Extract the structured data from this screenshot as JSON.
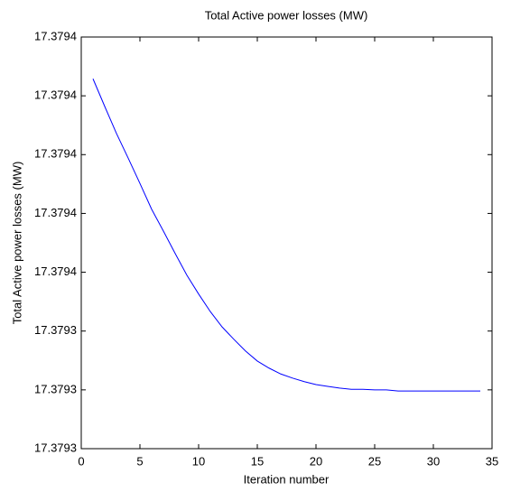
{
  "chart_data": {
    "type": "line",
    "title": "Total Active power losses (MW)",
    "x_label": "Iteration number",
    "y_label": "Total Active power losses (MW)",
    "x": [
      1,
      2,
      3,
      4,
      5,
      6,
      7,
      8,
      9,
      10,
      11,
      12,
      13,
      14,
      15,
      16,
      17,
      18,
      19,
      20,
      21,
      22,
      23,
      24,
      25,
      26,
      27,
      28,
      29,
      30,
      31,
      32,
      33,
      34
    ],
    "series": [
      {
        "color": "#0000ff",
        "values": [
          17.3793829,
          17.3793782,
          17.3793736,
          17.3793694,
          17.3793651,
          17.3793607,
          17.379357,
          17.3793532,
          17.3793495,
          17.3793463,
          17.3793433,
          17.3793407,
          17.3793386,
          17.3793366,
          17.3793349,
          17.3793337,
          17.3793327,
          17.379332,
          17.3793314,
          17.3793309,
          17.3793306,
          17.3793303,
          17.3793301,
          17.3793301,
          17.37933,
          17.37933,
          17.3793298,
          17.3793298,
          17.3793298,
          17.3793298,
          17.3793298,
          17.3793298,
          17.3793298,
          17.3793298
        ]
      }
    ],
    "xlim": [
      0,
      35
    ],
    "xticks": [
      0,
      5,
      10,
      15,
      20,
      25,
      30,
      35
    ],
    "ylim": [
      17.37932,
      17.37939
    ],
    "yticks": [
      {
        "value": 17.37932,
        "label": "17.3793"
      },
      {
        "value": 17.37933,
        "label": "17.3793"
      },
      {
        "value": 17.37934,
        "label": "17.3793"
      },
      {
        "value": 17.37935,
        "label": "17.3794"
      },
      {
        "value": 17.37936,
        "label": "17.3794"
      },
      {
        "value": 17.37937,
        "label": "17.3794"
      },
      {
        "value": 17.37938,
        "label": "17.3794"
      },
      {
        "value": 17.37939,
        "label": "17.3794"
      }
    ],
    "grid": false
  }
}
